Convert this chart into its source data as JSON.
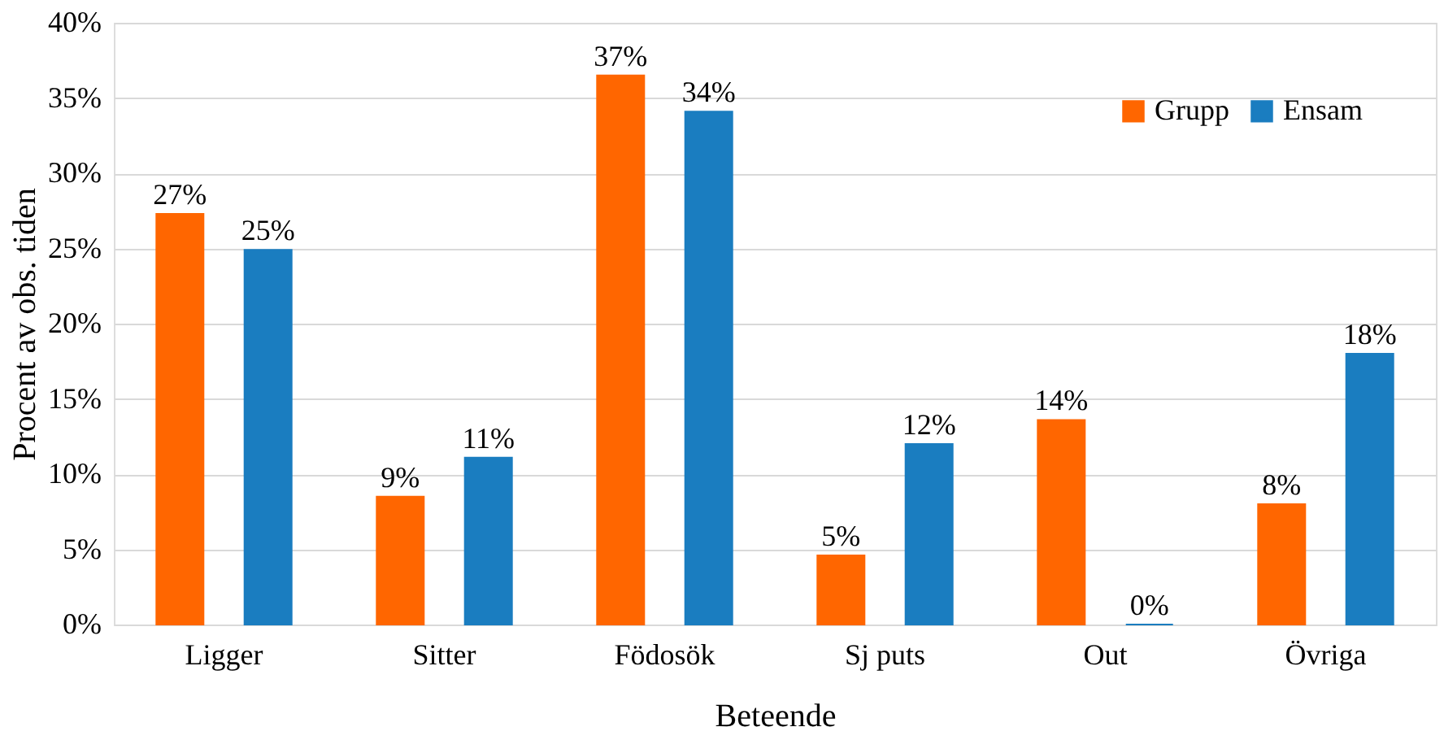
{
  "chart_data": {
    "type": "bar",
    "xlabel": "Beteende",
    "ylabel": "Procent av obs. tiden",
    "categories": [
      "Ligger",
      "Sitter",
      "Födosök",
      "Sj puts",
      "Out",
      "Övriga"
    ],
    "series": [
      {
        "name": "Grupp",
        "color": "#ff6600",
        "values": [
          27.3,
          8.5,
          36.5,
          4.6,
          13.6,
          8.0
        ],
        "value_labels": [
          "27%",
          "9%",
          "37%",
          "5%",
          "14%",
          "8%"
        ]
      },
      {
        "name": "Ensam",
        "color": "#1a7dc0",
        "values": [
          24.9,
          11.1,
          34.1,
          12.0,
          0,
          18.0
        ],
        "value_labels": [
          "25%",
          "11%",
          "34%",
          "12%",
          "0%",
          "18%"
        ]
      }
    ],
    "ylim": [
      0,
      40
    ],
    "yticks": [
      {
        "value": 0,
        "label": "0%"
      },
      {
        "value": 5,
        "label": "5%"
      },
      {
        "value": 10,
        "label": "10%"
      },
      {
        "value": 15,
        "label": "15%"
      },
      {
        "value": 20,
        "label": "20%"
      },
      {
        "value": 25,
        "label": "25%"
      },
      {
        "value": 30,
        "label": "30%"
      },
      {
        "value": 35,
        "label": "35%"
      },
      {
        "value": 40,
        "label": "40%"
      }
    ],
    "grid": "y",
    "legend": "top right"
  }
}
